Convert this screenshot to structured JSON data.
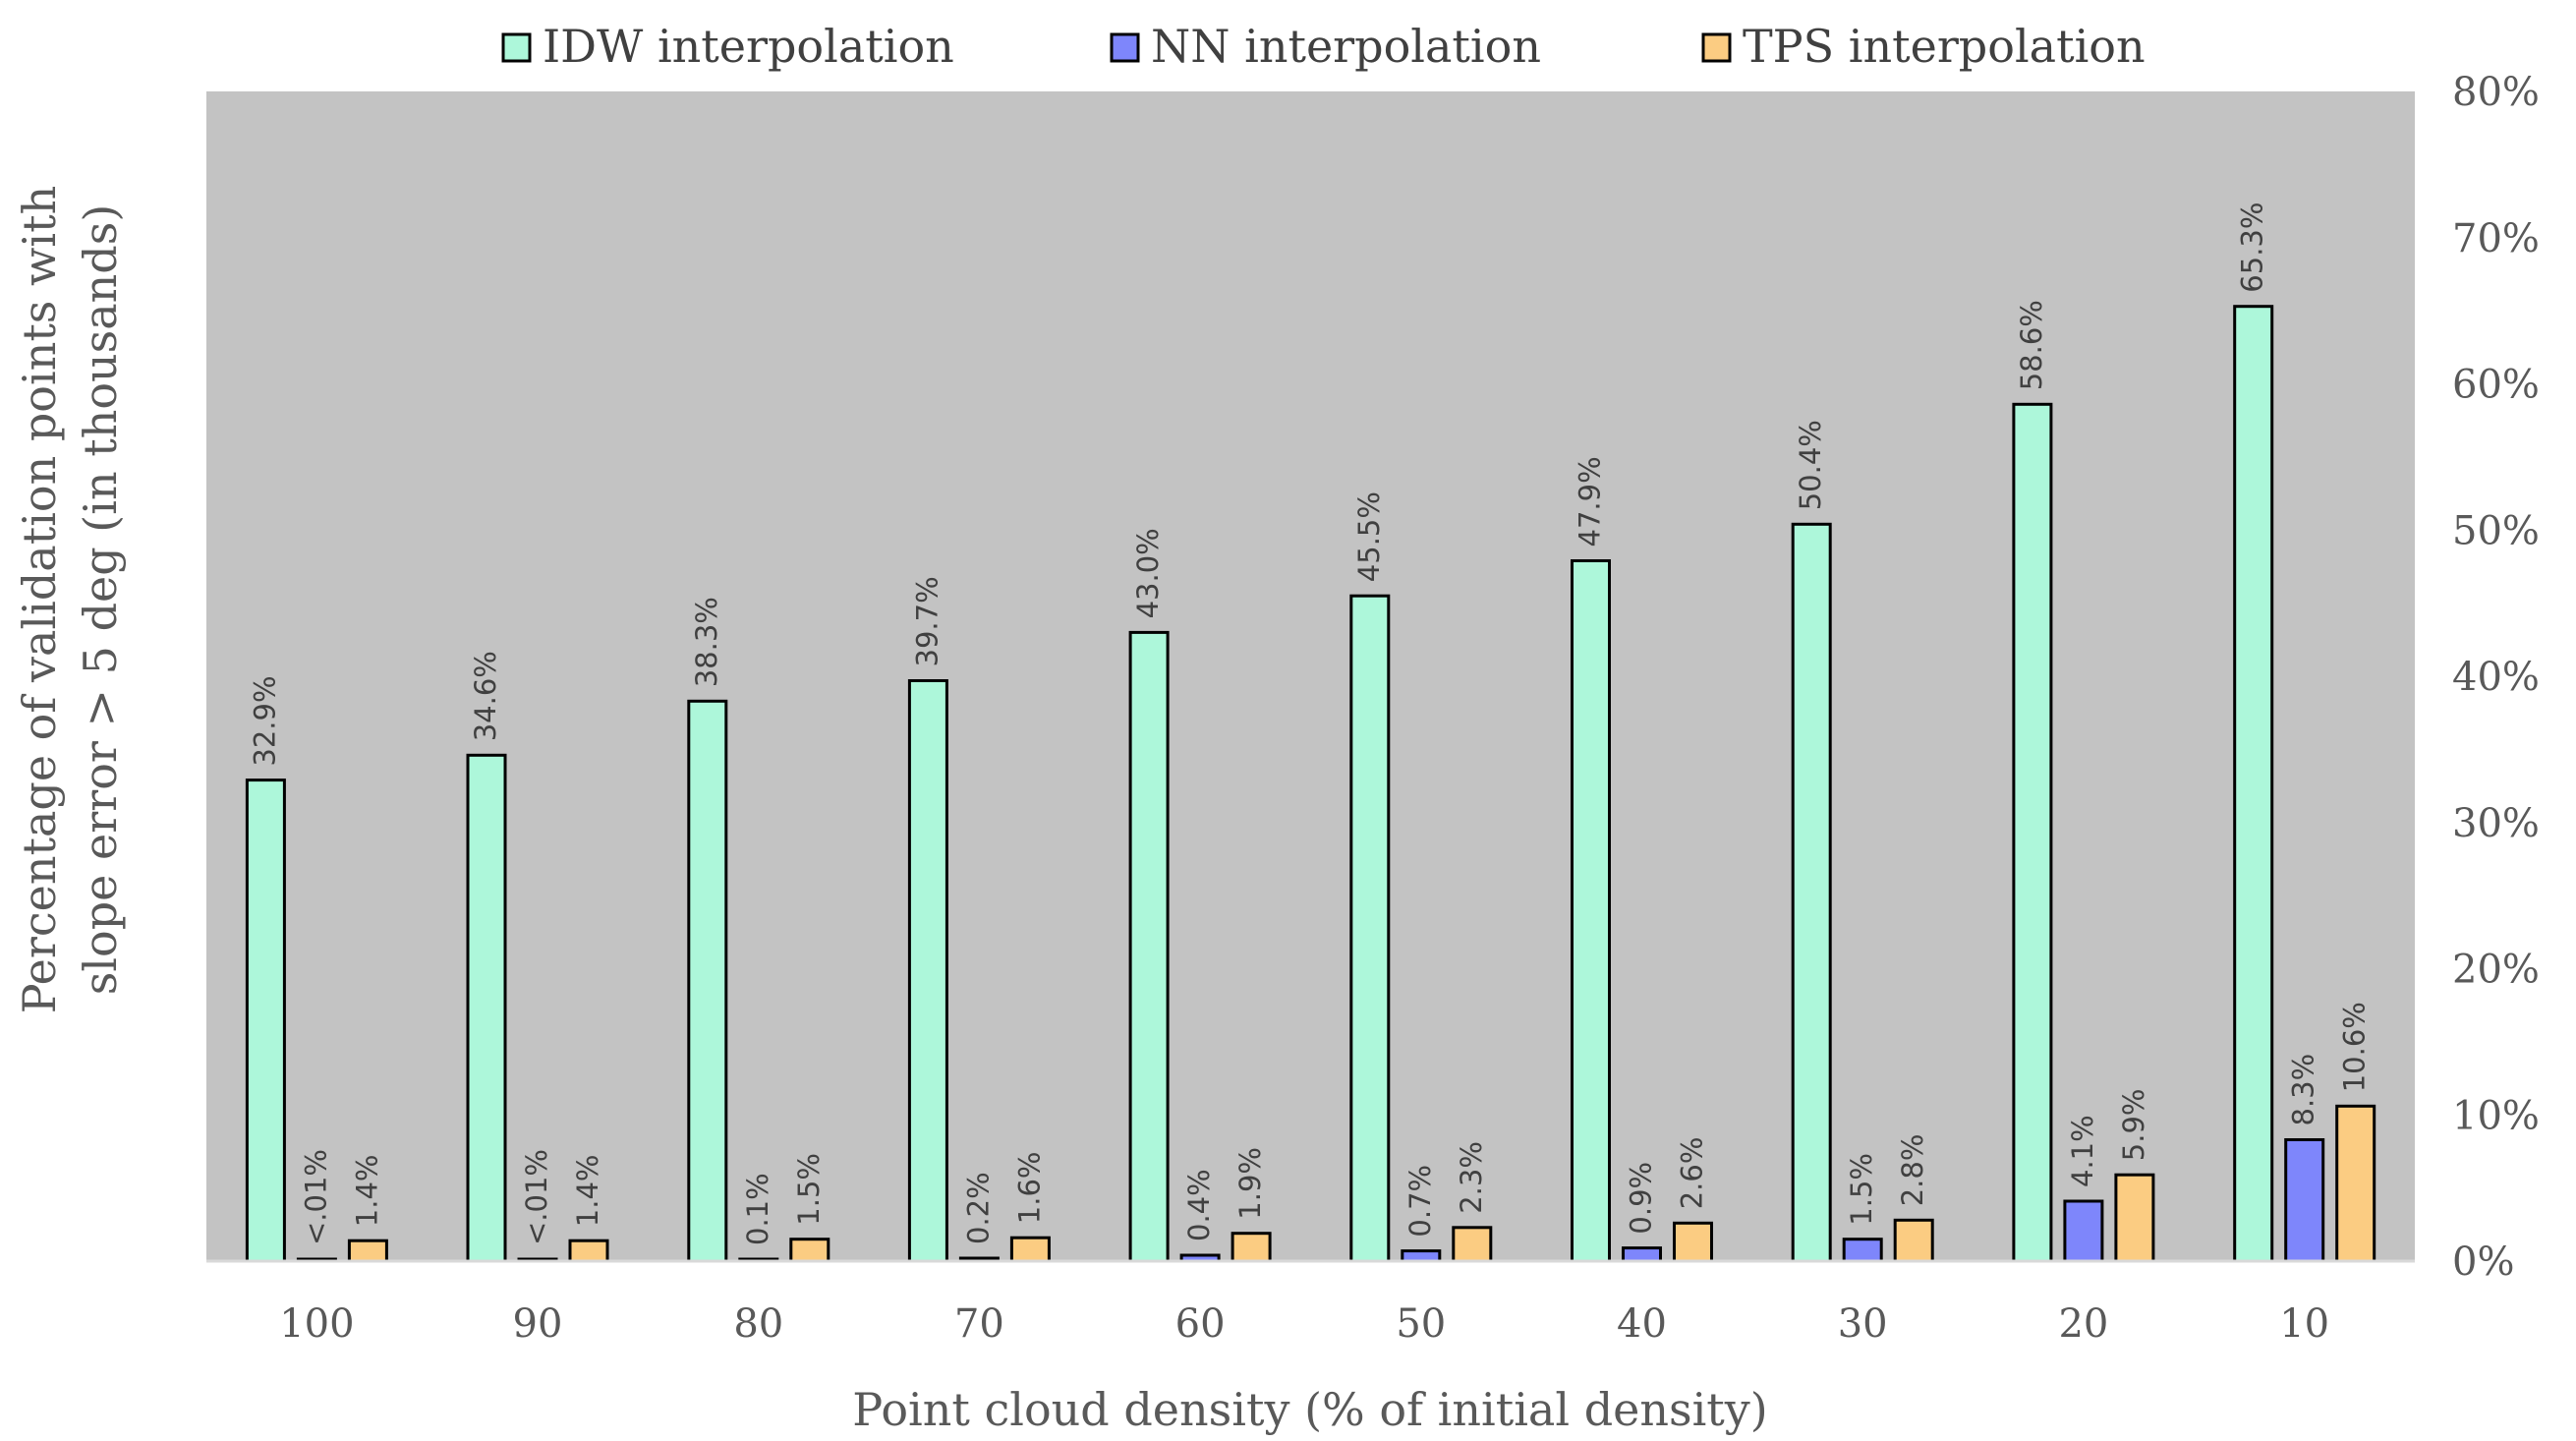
{
  "chart_data": {
    "type": "bar",
    "xlabel": "Point cloud density (% of initial density)",
    "ylabel_line1": "Percentage of validation points with",
    "ylabel_line2": "slope error > 5 deg (in thousands)",
    "y_axis_side": "right",
    "ylim": [
      0,
      80
    ],
    "yticks": [
      0,
      10,
      20,
      30,
      40,
      50,
      60,
      70,
      80
    ],
    "ytick_labels": [
      "0%",
      "10%",
      "20%",
      "30%",
      "40%",
      "50%",
      "60%",
      "70%",
      "80%"
    ],
    "categories": [
      "100",
      "90",
      "80",
      "70",
      "60",
      "50",
      "40",
      "30",
      "20",
      "10"
    ],
    "legend_position": "top",
    "plot_background": "#c3c3c3",
    "series": [
      {
        "name": "IDW interpolation",
        "color": "#adf7da",
        "values": [
          32.9,
          34.6,
          38.3,
          39.7,
          43.0,
          45.5,
          47.9,
          50.4,
          58.6,
          65.3
        ],
        "labels": [
          "32.9%",
          "34.6%",
          "38.3%",
          "39.7%",
          "43.0%",
          "45.5%",
          "47.9%",
          "50.4%",
          "58.6%",
          "65.3%"
        ]
      },
      {
        "name": "NN interpolation",
        "color": "#7e86fb",
        "values": [
          0.01,
          0.01,
          0.1,
          0.2,
          0.4,
          0.7,
          0.9,
          1.5,
          4.1,
          8.3
        ],
        "labels": [
          "<.01%",
          "<.01%",
          "0.1%",
          "0.2%",
          "0.4%",
          "0.7%",
          "0.9%",
          "1.5%",
          "4.1%",
          "8.3%"
        ]
      },
      {
        "name": "TPS interpolation",
        "color": "#fbcc82",
        "values": [
          1.4,
          1.4,
          1.5,
          1.6,
          1.9,
          2.3,
          2.6,
          2.8,
          5.9,
          10.6
        ],
        "labels": [
          "1.4%",
          "1.4%",
          "1.5%",
          "1.6%",
          "1.9%",
          "2.3%",
          "2.6%",
          "2.8%",
          "5.9%",
          "10.6%"
        ]
      }
    ]
  }
}
